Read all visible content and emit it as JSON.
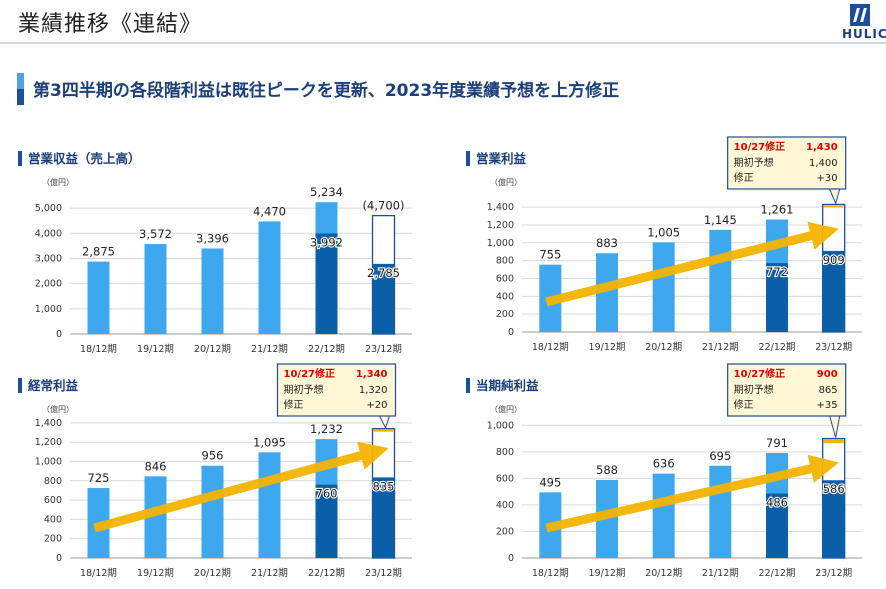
{
  "header": {
    "title": "業績推移《連結》",
    "logo_text": "HULIC",
    "headline": "第3四半期の各段階利益は既往ピークを更新、2023年度業績予想を上方修正"
  },
  "colors": {
    "light_bar": "#3ea8ee",
    "dark_bar": "#0b5ea8",
    "arrow": "#f5b400",
    "forecast_outline": "#1b4e9b",
    "callout_bg": "#fff7d6",
    "callout_border": "#1b4e9b",
    "red": "#e00000",
    "brand": "#1b4e9b"
  },
  "chart_data": [
    {
      "type": "bar",
      "title": "営業収益（売上高）",
      "unit": "（億円）",
      "categories": [
        "18/12期",
        "19/12期",
        "20/12期",
        "21/12期",
        "22/12期",
        "23/12期"
      ],
      "annual_values": [
        2875,
        3572,
        3396,
        4470,
        5234,
        null
      ],
      "annual_labels": [
        "2,875",
        "3,572",
        "3,396",
        "4,470",
        "5,234",
        ""
      ],
      "q3_values": [
        null,
        null,
        null,
        null,
        3992,
        2785
      ],
      "q3_labels": [
        "",
        "",
        "",
        "",
        "3,992",
        "2,785"
      ],
      "forecast": {
        "category_index": 5,
        "value": 4700,
        "label": "(4,700)",
        "revision": 0
      },
      "yticks": [
        0,
        1000,
        2000,
        3000,
        4000,
        5000
      ],
      "ytick_labels": [
        "0",
        "1,000",
        "2,000",
        "3,000",
        "4,000",
        "5,000"
      ],
      "ylim": [
        0,
        5400
      ],
      "arrow": false,
      "callout": null
    },
    {
      "type": "bar",
      "title": "営業利益",
      "unit": "（億円）",
      "categories": [
        "18/12期",
        "19/12期",
        "20/12期",
        "21/12期",
        "22/12期",
        "23/12期"
      ],
      "annual_values": [
        755,
        883,
        1005,
        1145,
        1261,
        null
      ],
      "annual_labels": [
        "755",
        "883",
        "1,005",
        "1,145",
        "1,261",
        ""
      ],
      "q3_values": [
        null,
        null,
        null,
        null,
        772,
        909
      ],
      "q3_labels": [
        "",
        "",
        "",
        "",
        "772",
        "909"
      ],
      "forecast": {
        "category_index": 5,
        "value": 1430,
        "label": "",
        "revision": 30
      },
      "yticks": [
        0,
        200,
        400,
        600,
        800,
        1000,
        1200,
        1400
      ],
      "ytick_labels": [
        "0",
        "200",
        "400",
        "600",
        "800",
        "1,000",
        "1,200",
        "1,400"
      ],
      "ylim": [
        0,
        1480
      ],
      "arrow": true,
      "callout": {
        "title": "10/27修正",
        "title_value": "1,430",
        "row1_label": "期初予想",
        "row1_value": "1,400",
        "row2_label": "修正",
        "row2_value": "+30"
      }
    },
    {
      "type": "bar",
      "title": "経常利益",
      "unit": "（億円）",
      "categories": [
        "18/12期",
        "19/12期",
        "20/12期",
        "21/12期",
        "22/12期",
        "23/12期"
      ],
      "annual_values": [
        725,
        846,
        956,
        1095,
        1232,
        null
      ],
      "annual_labels": [
        "725",
        "846",
        "956",
        "1,095",
        "1,232",
        ""
      ],
      "q3_values": [
        null,
        null,
        null,
        null,
        760,
        835
      ],
      "q3_labels": [
        "",
        "",
        "",
        "",
        "760",
        "835"
      ],
      "forecast": {
        "category_index": 5,
        "value": 1340,
        "label": "",
        "revision": 20
      },
      "yticks": [
        0,
        200,
        400,
        600,
        800,
        1000,
        1200,
        1400
      ],
      "ytick_labels": [
        "0",
        "200",
        "400",
        "600",
        "800",
        "1,000",
        "1,200",
        "1,400"
      ],
      "ylim": [
        0,
        1430
      ],
      "arrow": true,
      "callout": {
        "title": "10/27修正",
        "title_value": "1,340",
        "row1_label": "期初予想",
        "row1_value": "1,320",
        "row2_label": "修正",
        "row2_value": "+20"
      }
    },
    {
      "type": "bar",
      "title": "当期純利益",
      "unit": "（億円）",
      "categories": [
        "18/12期",
        "19/12期",
        "20/12期",
        "21/12期",
        "22/12期",
        "23/12期"
      ],
      "annual_values": [
        495,
        588,
        636,
        695,
        791,
        null
      ],
      "annual_labels": [
        "495",
        "588",
        "636",
        "695",
        "791",
        ""
      ],
      "q3_values": [
        null,
        null,
        null,
        null,
        486,
        586
      ],
      "q3_labels": [
        "",
        "",
        "",
        "",
        "486",
        "586"
      ],
      "forecast": {
        "category_index": 5,
        "value": 900,
        "label": "",
        "revision": 35
      },
      "yticks": [
        0,
        200,
        400,
        600,
        800,
        1000
      ],
      "ytick_labels": [
        "0",
        "200",
        "400",
        "600",
        "800",
        "1,000"
      ],
      "ylim": [
        0,
        1040
      ],
      "arrow": true,
      "callout": {
        "title": "10/27修正",
        "title_value": "900",
        "row1_label": "期初予想",
        "row1_value": "865",
        "row2_label": "修正",
        "row2_value": "+35"
      }
    }
  ]
}
